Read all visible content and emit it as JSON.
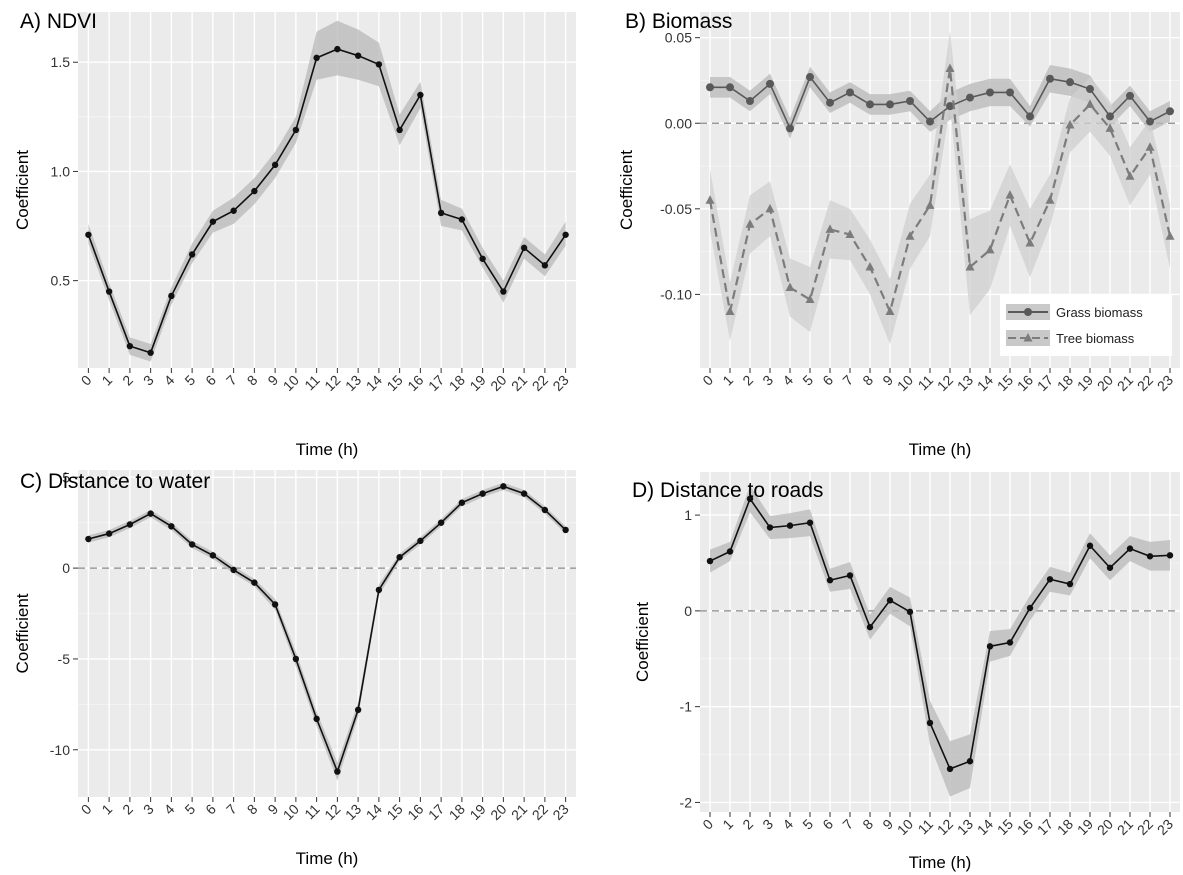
{
  "chart_data": [
    {
      "id": "ndvi",
      "type": "line",
      "title": "A) NDVI",
      "xlabel": "Time (h)",
      "ylabel": "Coefficient",
      "x": [
        0,
        1,
        2,
        3,
        4,
        5,
        6,
        7,
        8,
        9,
        10,
        11,
        12,
        13,
        14,
        15,
        16,
        17,
        18,
        19,
        20,
        21,
        22,
        23
      ],
      "xlim": [
        -0.5,
        23.5
      ],
      "ylim": [
        0.1,
        1.73
      ],
      "yticks": [
        0.5,
        1.0,
        1.5
      ],
      "ytick_labels": [
        "0.5",
        "1.0",
        "1.5"
      ],
      "zero_line": false,
      "grid": true,
      "series": [
        {
          "values": [
            0.71,
            0.45,
            0.2,
            0.17,
            0.43,
            0.62,
            0.77,
            0.82,
            0.91,
            1.03,
            1.19,
            1.52,
            1.56,
            1.53,
            1.49,
            1.19,
            1.35,
            0.81,
            0.78,
            0.6,
            0.45,
            0.65,
            0.57,
            0.71
          ],
          "lower": [
            0.67,
            0.41,
            0.16,
            0.13,
            0.39,
            0.58,
            0.72,
            0.76,
            0.85,
            0.97,
            1.13,
            1.42,
            1.44,
            1.42,
            1.39,
            1.12,
            1.29,
            0.75,
            0.73,
            0.56,
            0.4,
            0.6,
            0.52,
            0.66
          ],
          "upper": [
            0.76,
            0.49,
            0.24,
            0.21,
            0.47,
            0.67,
            0.82,
            0.88,
            0.97,
            1.09,
            1.25,
            1.64,
            1.69,
            1.65,
            1.59,
            1.26,
            1.41,
            0.87,
            0.83,
            0.65,
            0.5,
            0.7,
            0.62,
            0.77
          ],
          "color": "#111111",
          "marker": "circle",
          "dash": "solid"
        }
      ]
    },
    {
      "id": "biomass",
      "type": "line",
      "title": "B) Biomass",
      "xlabel": "Time (h)",
      "ylabel": "Coefficient",
      "x": [
        0,
        1,
        2,
        3,
        4,
        5,
        6,
        7,
        8,
        9,
        10,
        11,
        12,
        13,
        14,
        15,
        16,
        17,
        18,
        19,
        20,
        21,
        22,
        23
      ],
      "xlim": [
        -0.5,
        23.5
      ],
      "ylim": [
        -0.143,
        0.065
      ],
      "yticks": [
        -0.1,
        -0.05,
        0.0,
        0.05
      ],
      "ytick_labels": [
        "-0.10",
        "-0.05",
        "0.00",
        "0.05"
      ],
      "zero_line": true,
      "grid": true,
      "legend_position": "bottom-right",
      "series": [
        {
          "name": "Grass biomass",
          "values": [
            0.021,
            0.021,
            0.013,
            0.023,
            -0.003,
            0.027,
            0.012,
            0.018,
            0.011,
            0.011,
            0.013,
            0.001,
            0.01,
            0.015,
            0.018,
            0.018,
            0.004,
            0.026,
            0.024,
            0.02,
            0.004,
            0.016,
            0.001,
            0.007
          ],
          "lower": [
            0.015,
            0.015,
            0.007,
            0.017,
            -0.009,
            0.021,
            0.006,
            0.012,
            0.005,
            0.005,
            0.007,
            -0.005,
            0.002,
            0.007,
            0.01,
            0.01,
            -0.002,
            0.018,
            0.016,
            0.012,
            -0.002,
            0.01,
            -0.005,
            0.001
          ],
          "upper": [
            0.027,
            0.027,
            0.019,
            0.029,
            0.003,
            0.033,
            0.018,
            0.024,
            0.017,
            0.017,
            0.019,
            0.007,
            0.018,
            0.023,
            0.026,
            0.026,
            0.01,
            0.034,
            0.032,
            0.028,
            0.01,
            0.022,
            0.007,
            0.013
          ],
          "color": "#595959",
          "marker": "circle",
          "dash": "solid"
        },
        {
          "name": "Tree biomass",
          "values": [
            -0.045,
            -0.11,
            -0.059,
            -0.05,
            -0.096,
            -0.103,
            -0.062,
            -0.065,
            -0.084,
            -0.11,
            -0.066,
            -0.048,
            0.032,
            -0.084,
            -0.074,
            -0.042,
            -0.07,
            -0.045,
            -0.001,
            0.011,
            -0.003,
            -0.031,
            -0.014,
            -0.066
          ],
          "lower": [
            -0.063,
            -0.127,
            -0.076,
            -0.066,
            -0.113,
            -0.122,
            -0.079,
            -0.08,
            -0.1,
            -0.129,
            -0.085,
            -0.066,
            0.01,
            -0.112,
            -0.097,
            -0.06,
            -0.09,
            -0.06,
            -0.017,
            -0.005,
            -0.019,
            -0.048,
            -0.03,
            -0.085
          ],
          "upper": [
            -0.027,
            -0.093,
            -0.042,
            -0.034,
            -0.079,
            -0.084,
            -0.045,
            -0.05,
            -0.068,
            -0.091,
            -0.047,
            -0.03,
            0.054,
            -0.056,
            -0.051,
            -0.024,
            -0.05,
            -0.03,
            0.015,
            0.027,
            0.013,
            -0.014,
            0.002,
            -0.047
          ],
          "color": "#7c7c7c",
          "marker": "triangle",
          "dash": "dashed"
        }
      ]
    },
    {
      "id": "water",
      "type": "line",
      "title": "C) Distance to water",
      "xlabel": "Time (h)",
      "ylabel": "Coefficient",
      "x": [
        0,
        1,
        2,
        3,
        4,
        5,
        6,
        7,
        8,
        9,
        10,
        11,
        12,
        13,
        14,
        15,
        16,
        17,
        18,
        19,
        20,
        21,
        22,
        23
      ],
      "xlim": [
        -0.5,
        23.5
      ],
      "ylim": [
        -12.6,
        5.4
      ],
      "yticks": [
        -10,
        -5,
        0,
        5
      ],
      "ytick_labels": [
        "-10",
        "-5",
        "0",
        "5"
      ],
      "zero_line": true,
      "grid": true,
      "series": [
        {
          "values": [
            1.6,
            1.9,
            2.4,
            3.0,
            2.3,
            1.3,
            0.7,
            -0.1,
            -0.8,
            -2.0,
            -5.0,
            -8.3,
            -11.2,
            -7.8,
            -1.2,
            0.6,
            1.5,
            2.5,
            3.6,
            4.1,
            4.5,
            4.1,
            3.2,
            2.1
          ],
          "lower": [
            1.4,
            1.7,
            2.2,
            2.8,
            2.1,
            1.1,
            0.5,
            -0.3,
            -1.0,
            -2.3,
            -5.4,
            -8.7,
            -11.7,
            -8.2,
            -1.5,
            0.4,
            1.3,
            2.3,
            3.4,
            3.9,
            4.3,
            3.9,
            3.0,
            1.9
          ],
          "upper": [
            1.8,
            2.1,
            2.6,
            3.2,
            2.5,
            1.5,
            0.9,
            0.1,
            -0.6,
            -1.7,
            -4.6,
            -7.9,
            -10.7,
            -7.4,
            -0.9,
            0.8,
            1.7,
            2.7,
            3.8,
            4.3,
            4.7,
            4.3,
            3.4,
            2.3
          ],
          "color": "#111111",
          "marker": "circle",
          "dash": "solid"
        }
      ]
    },
    {
      "id": "roads",
      "type": "line",
      "title": "D) Distance to roads",
      "xlabel": "Time (h)",
      "ylabel": "Coefficient",
      "x": [
        0,
        1,
        2,
        3,
        4,
        5,
        6,
        7,
        8,
        9,
        10,
        11,
        12,
        13,
        14,
        15,
        16,
        17,
        18,
        19,
        20,
        21,
        22,
        23
      ],
      "xlim": [
        -0.5,
        23.5
      ],
      "ylim": [
        -2.1,
        1.45
      ],
      "yticks": [
        -2,
        -1,
        0,
        1
      ],
      "ytick_labels": [
        "-2",
        "-1",
        "0",
        "1"
      ],
      "zero_line": true,
      "grid": true,
      "series": [
        {
          "values": [
            0.52,
            0.62,
            1.17,
            0.87,
            0.89,
            0.92,
            0.32,
            0.37,
            -0.17,
            0.11,
            -0.01,
            -1.17,
            -1.65,
            -1.57,
            -0.37,
            -0.33,
            0.03,
            0.33,
            0.28,
            0.68,
            0.45,
            0.65,
            0.57,
            0.58
          ],
          "lower": [
            0.4,
            0.52,
            1.03,
            0.75,
            0.76,
            0.78,
            0.2,
            0.23,
            -0.3,
            -0.03,
            -0.16,
            -1.4,
            -1.94,
            -1.85,
            -0.53,
            -0.47,
            -0.1,
            0.2,
            0.16,
            0.55,
            0.32,
            0.52,
            0.42,
            0.42
          ],
          "upper": [
            0.64,
            0.72,
            1.31,
            0.99,
            1.02,
            1.06,
            0.44,
            0.51,
            -0.04,
            0.25,
            0.14,
            -0.94,
            -1.36,
            -1.29,
            -0.21,
            -0.19,
            0.16,
            0.46,
            0.4,
            0.81,
            0.58,
            0.78,
            0.72,
            0.74
          ],
          "color": "#111111",
          "marker": "circle",
          "dash": "solid"
        }
      ]
    }
  ]
}
